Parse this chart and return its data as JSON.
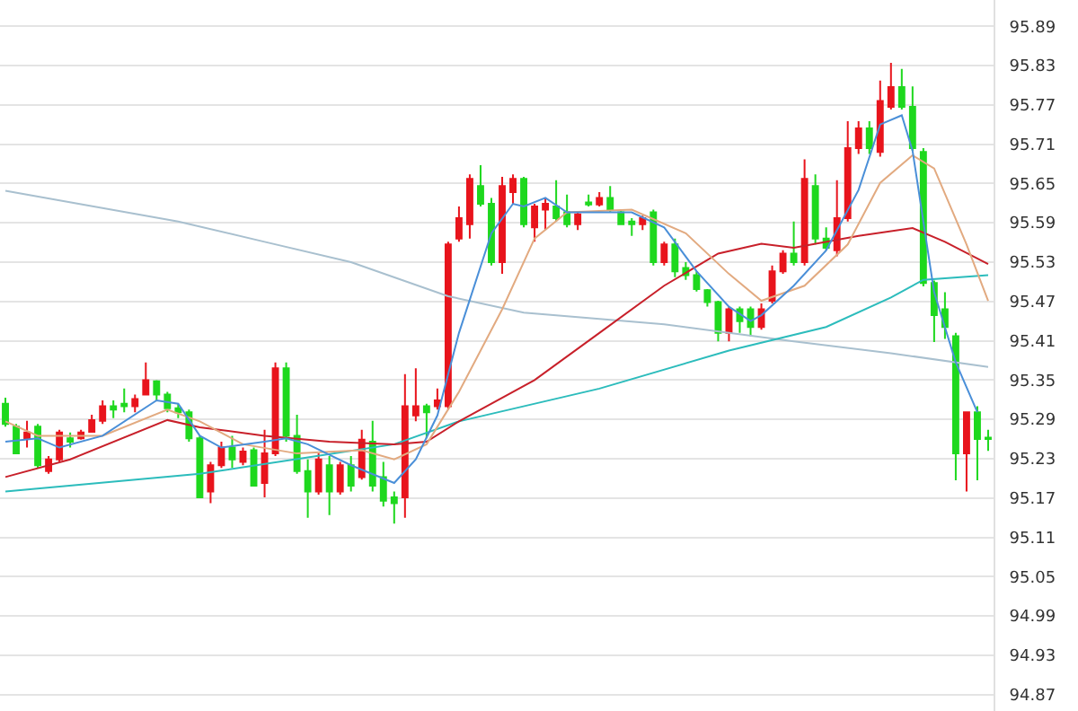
{
  "chart_data": {
    "type": "candlestick",
    "categories": [
      null,
      null,
      null,
      null,
      null,
      null,
      null,
      null,
      null,
      null,
      null,
      null,
      null,
      null,
      null,
      null,
      null,
      null,
      null,
      null,
      null,
      null,
      null,
      null,
      null,
      null,
      null,
      null,
      null,
      null,
      null,
      null,
      null,
      null,
      null,
      null,
      null,
      null,
      null,
      null,
      null,
      null,
      null,
      null,
      null,
      null,
      null,
      null,
      null,
      null,
      null,
      null,
      null,
      null,
      null,
      null,
      null,
      null,
      null,
      null,
      null,
      null,
      null,
      null,
      null,
      null,
      null,
      null,
      null,
      null,
      null,
      null,
      null,
      null,
      null,
      null,
      null,
      null,
      null,
      null,
      null,
      null,
      null,
      null,
      null,
      null,
      null,
      null,
      null,
      null,
      null,
      null
    ],
    "ohlc": [
      [
        95.314,
        95.323,
        95.279,
        95.283
      ],
      [
        95.279,
        95.283,
        95.238,
        95.238
      ],
      [
        95.261,
        95.288,
        95.247,
        95.27
      ],
      [
        95.279,
        95.283,
        95.216,
        95.22
      ],
      [
        95.211,
        95.234,
        95.207,
        95.229
      ],
      [
        95.229,
        95.274,
        95.225,
        95.27
      ],
      [
        95.261,
        95.27,
        95.247,
        95.256
      ],
      [
        95.261,
        95.274,
        95.259,
        95.27
      ],
      [
        95.271,
        95.297,
        95.27,
        95.289
      ],
      [
        95.288,
        95.319,
        95.283,
        95.31
      ],
      [
        95.31,
        95.319,
        95.292,
        95.305
      ],
      [
        95.314,
        95.337,
        95.301,
        95.31
      ],
      [
        95.31,
        95.328,
        95.301,
        95.321
      ],
      [
        95.328,
        95.377,
        95.328,
        95.35
      ],
      [
        95.348,
        95.35,
        95.319,
        95.328
      ],
      [
        95.328,
        95.332,
        95.301,
        95.307
      ],
      [
        95.307,
        95.314,
        95.292,
        95.301
      ],
      [
        95.301,
        95.305,
        95.256,
        95.261
      ],
      [
        95.261,
        95.265,
        95.171,
        95.171
      ],
      [
        95.18,
        95.225,
        95.162,
        95.22
      ],
      [
        95.22,
        95.256,
        95.216,
        95.247
      ],
      [
        95.247,
        95.265,
        95.216,
        95.229
      ],
      [
        95.225,
        95.247,
        95.22,
        95.241
      ],
      [
        95.243,
        95.247,
        95.189,
        95.189
      ],
      [
        95.193,
        95.274,
        95.171,
        95.238
      ],
      [
        95.238,
        95.377,
        95.234,
        95.368
      ],
      [
        95.368,
        95.377,
        95.256,
        95.265
      ],
      [
        95.265,
        95.297,
        95.207,
        95.211
      ],
      [
        95.211,
        95.229,
        95.14,
        95.18
      ],
      [
        95.18,
        95.238,
        95.175,
        95.229
      ],
      [
        95.22,
        95.234,
        95.144,
        95.18
      ],
      [
        95.18,
        95.225,
        95.175,
        95.22
      ],
      [
        95.22,
        95.234,
        95.18,
        95.189
      ],
      [
        95.202,
        95.274,
        95.198,
        95.259
      ],
      [
        95.256,
        95.288,
        95.18,
        95.189
      ],
      [
        95.202,
        95.225,
        95.157,
        95.166
      ],
      [
        95.171,
        95.18,
        95.131,
        95.162
      ],
      [
        95.171,
        95.359,
        95.14,
        95.31
      ],
      [
        95.296,
        95.368,
        95.287,
        95.31
      ],
      [
        95.31,
        95.314,
        95.261,
        95.301
      ],
      [
        95.31,
        95.337,
        95.305,
        95.319
      ],
      [
        95.31,
        95.561,
        95.305,
        95.557
      ],
      [
        95.566,
        95.615,
        95.561,
        95.597
      ],
      [
        95.588,
        95.664,
        95.566,
        95.657
      ],
      [
        95.646,
        95.678,
        95.615,
        95.619
      ],
      [
        95.619,
        95.628,
        95.525,
        95.53
      ],
      [
        95.53,
        95.66,
        95.512,
        95.646
      ],
      [
        95.637,
        95.664,
        95.619,
        95.657
      ],
      [
        95.657,
        95.66,
        95.583,
        95.588
      ],
      [
        95.583,
        95.619,
        95.561,
        95.615
      ],
      [
        95.61,
        95.628,
        95.579,
        95.619
      ],
      [
        95.615,
        95.655,
        95.592,
        95.597
      ],
      [
        95.606,
        95.633,
        95.583,
        95.588
      ],
      [
        95.588,
        95.606,
        95.579,
        95.603
      ],
      [
        95.621,
        95.633,
        95.615,
        95.618
      ],
      [
        95.618,
        95.637,
        95.615,
        95.628
      ],
      [
        95.628,
        95.646,
        95.606,
        95.61
      ],
      [
        95.606,
        95.61,
        95.588,
        95.588
      ],
      [
        95.592,
        95.597,
        95.57,
        95.588
      ],
      [
        95.588,
        95.601,
        95.579,
        95.597
      ],
      [
        95.606,
        95.61,
        95.525,
        95.53
      ],
      [
        95.53,
        95.561,
        95.525,
        95.557
      ],
      [
        95.557,
        95.566,
        95.507,
        95.516
      ],
      [
        95.521,
        95.53,
        95.503,
        95.51
      ],
      [
        95.51,
        95.516,
        95.485,
        95.489
      ],
      [
        95.487,
        95.489,
        95.462,
        95.469
      ],
      [
        95.469,
        95.471,
        95.409,
        95.422
      ],
      [
        95.422,
        95.462,
        95.409,
        95.458
      ],
      [
        95.458,
        95.462,
        95.422,
        95.44
      ],
      [
        95.458,
        95.462,
        95.417,
        95.431
      ],
      [
        95.431,
        95.467,
        95.427,
        95.458
      ],
      [
        95.471,
        95.525,
        95.467,
        95.516
      ],
      [
        95.516,
        95.548,
        95.512,
        95.543
      ],
      [
        95.543,
        95.592,
        95.525,
        95.53
      ],
      [
        95.53,
        95.687,
        95.525,
        95.657
      ],
      [
        95.646,
        95.664,
        95.557,
        95.566
      ],
      [
        95.566,
        95.583,
        95.548,
        95.552
      ],
      [
        95.548,
        95.655,
        95.539,
        95.597
      ],
      [
        95.597,
        95.745,
        95.592,
        95.704
      ],
      [
        95.704,
        95.745,
        95.695,
        95.734
      ],
      [
        95.734,
        95.745,
        95.695,
        95.704
      ],
      [
        95.698,
        95.807,
        95.691,
        95.776
      ],
      [
        95.767,
        95.834,
        95.763,
        95.797
      ],
      [
        95.797,
        95.825,
        95.763,
        95.767
      ],
      [
        95.767,
        95.798,
        95.7,
        95.704
      ],
      [
        95.698,
        95.704,
        95.493,
        95.498
      ],
      [
        95.498,
        95.502,
        95.408,
        95.449
      ],
      [
        95.458,
        95.484,
        95.413,
        95.431
      ],
      [
        95.417,
        95.422,
        95.197,
        95.238
      ],
      [
        95.238,
        95.301,
        95.18,
        95.301
      ],
      [
        95.301,
        95.31,
        95.197,
        95.26
      ],
      [
        95.262,
        95.274,
        95.242,
        95.26
      ]
    ],
    "colors": [
      "#1ed81e",
      "#1ed81e",
      "#e8141c",
      "#1ed81e",
      "#e8141c",
      "#e8141c",
      "#1ed81e",
      "#e8141c",
      "#e8141c",
      "#e8141c",
      "#1ed81e",
      "#1ed81e",
      "#e8141c",
      "#e8141c",
      "#1ed81e",
      "#1ed81e",
      "#1ed81e",
      "#1ed81e",
      "#1ed81e",
      "#e8141c",
      "#e8141c",
      "#1ed81e",
      "#e8141c",
      "#1ed81e",
      "#e8141c",
      "#e8141c",
      "#1ed81e",
      "#1ed81e",
      "#1ed81e",
      "#e8141c",
      "#1ed81e",
      "#e8141c",
      "#1ed81e",
      "#e8141c",
      "#1ed81e",
      "#1ed81e",
      "#1ed81e",
      "#e8141c",
      "#e8141c",
      "#1ed81e",
      "#e8141c",
      "#e8141c",
      "#e8141c",
      "#e8141c",
      "#1ed81e",
      "#1ed81e",
      "#e8141c",
      "#e8141c",
      "#1ed81e",
      "#e8141c",
      "#e8141c",
      "#1ed81e",
      "#1ed81e",
      "#e8141c",
      "#1ed81e",
      "#e8141c",
      "#1ed81e",
      "#1ed81e",
      "#1ed81e",
      "#e8141c",
      "#1ed81e",
      "#e8141c",
      "#1ed81e",
      "#1ed81e",
      "#1ed81e",
      "#1ed81e",
      "#1ed81e",
      "#e8141c",
      "#1ed81e",
      "#1ed81e",
      "#e8141c",
      "#e8141c",
      "#e8141c",
      "#1ed81e",
      "#e8141c",
      "#1ed81e",
      "#1ed81e",
      "#e8141c",
      "#e8141c",
      "#e8141c",
      "#1ed81e",
      "#e8141c",
      "#e8141c",
      "#1ed81e",
      "#1ed81e",
      "#1ed81e",
      "#1ed81e",
      "#1ed81e",
      "#1ed81e",
      "#e8141c",
      "#1ed81e",
      "#1ed81e"
    ],
    "series": [
      {
        "type": "line",
        "color": "#a9c0cf",
        "values": [
          95.639,
          null,
          null,
          null,
          null,
          null,
          null,
          null,
          null,
          null,
          null,
          null,
          null,
          null,
          null,
          null,
          95.592,
          null,
          null,
          null,
          null,
          null,
          null,
          null,
          95.561,
          null,
          null,
          null,
          null,
          null,
          null,
          null,
          95.53,
          null,
          null,
          null,
          null,
          null,
          null,
          null,
          null,
          95.478,
          null,
          null,
          null,
          null,
          null,
          null,
          95.453,
          null,
          null,
          null,
          null,
          null,
          null,
          null,
          null,
          null,
          null,
          null,
          null,
          95.435,
          null,
          null,
          null,
          null,
          null,
          null,
          null,
          null,
          null,
          null,
          null,
          95.409,
          null,
          null,
          null,
          null,
          null,
          null,
          null,
          null,
          95.391,
          null,
          null,
          null,
          null,
          null,
          null,
          null,
          null,
          95.37
        ]
      },
      {
        "type": "line",
        "color": "#2cbcbc",
        "values": [
          95.18,
          null,
          null,
          null,
          null,
          null,
          null,
          null,
          null,
          null,
          null,
          null,
          null,
          null,
          null,
          null,
          null,
          null,
          95.207,
          null,
          null,
          null,
          null,
          null,
          null,
          null,
          null,
          null,
          null,
          null,
          null,
          null,
          null,
          null,
          null,
          null,
          95.252,
          null,
          null,
          null,
          null,
          null,
          95.287,
          null,
          null,
          null,
          null,
          null,
          null,
          null,
          null,
          null,
          null,
          null,
          null,
          95.337,
          null,
          null,
          null,
          null,
          null,
          null,
          null,
          null,
          null,
          null,
          null,
          95.395,
          null,
          null,
          null,
          null,
          null,
          null,
          null,
          null,
          95.431,
          null,
          null,
          null,
          null,
          null,
          95.476,
          null,
          null,
          95.503,
          null,
          null,
          null,
          null,
          null,
          95.51
        ]
      },
      {
        "type": "line",
        "color": "#c8202a",
        "values": [
          95.202,
          null,
          null,
          null,
          null,
          null,
          95.229,
          null,
          null,
          null,
          null,
          null,
          null,
          null,
          null,
          95.289,
          null,
          null,
          95.278,
          null,
          null,
          null,
          null,
          null,
          95.265,
          null,
          null,
          null,
          null,
          null,
          95.256,
          null,
          null,
          null,
          null,
          null,
          95.252,
          null,
          null,
          95.256,
          null,
          null,
          95.287,
          null,
          null,
          null,
          null,
          null,
          null,
          95.35,
          null,
          null,
          null,
          null,
          null,
          95.422,
          null,
          null,
          null,
          null,
          null,
          95.494,
          null,
          null,
          null,
          null,
          95.543,
          null,
          null,
          null,
          95.558,
          null,
          null,
          95.552,
          null,
          null,
          null,
          null,
          null,
          95.57,
          null,
          null,
          null,
          null,
          95.582,
          null,
          null,
          95.561,
          null,
          null,
          null,
          95.527
        ]
      },
      {
        "type": "line",
        "color": "#e2aa80",
        "values": [
          95.287,
          null,
          null,
          95.265,
          null,
          null,
          null,
          null,
          null,
          95.265,
          null,
          null,
          null,
          null,
          null,
          95.305,
          null,
          null,
          95.287,
          null,
          null,
          null,
          95.252,
          null,
          null,
          null,
          null,
          95.238,
          null,
          null,
          null,
          null,
          null,
          95.243,
          null,
          null,
          95.229,
          null,
          null,
          95.252,
          null,
          null,
          95.332,
          null,
          null,
          null,
          95.458,
          null,
          null,
          95.566,
          null,
          null,
          95.606,
          null,
          null,
          null,
          null,
          null,
          95.61,
          null,
          null,
          null,
          null,
          95.574,
          null,
          null,
          null,
          95.512,
          null,
          null,
          95.471,
          null,
          null,
          null,
          95.494,
          null,
          null,
          null,
          95.557,
          null,
          null,
          95.651,
          null,
          null,
          95.693,
          null,
          95.673,
          null,
          null,
          95.557,
          null,
          95.471
        ]
      },
      {
        "type": "line",
        "color": "#4a8fd8",
        "values": [
          95.256,
          null,
          null,
          95.261,
          null,
          95.247,
          null,
          null,
          null,
          95.265,
          null,
          null,
          null,
          null,
          95.319,
          null,
          95.314,
          null,
          95.265,
          null,
          95.247,
          null,
          null,
          null,
          95.256,
          null,
          95.261,
          null,
          95.252,
          null,
          null,
          null,
          95.22,
          null,
          null,
          null,
          95.193,
          null,
          95.229,
          null,
          95.296,
          null,
          95.422,
          null,
          null,
          95.574,
          null,
          95.619,
          95.615,
          null,
          95.628,
          null,
          95.606,
          null,
          null,
          95.606,
          null,
          null,
          95.606,
          null,
          null,
          95.583,
          null,
          null,
          95.516,
          null,
          null,
          95.462,
          null,
          95.44,
          95.449,
          null,
          null,
          95.494,
          null,
          null,
          95.548,
          null,
          null,
          95.64,
          null,
          95.74,
          null,
          95.754,
          95.7,
          null,
          95.484,
          null,
          95.377,
          null,
          95.301,
          null
        ]
      }
    ],
    "ylim": [
      94.845,
      95.93
    ],
    "yticks": [
      94.87,
      94.93,
      94.99,
      95.05,
      95.11,
      95.17,
      95.23,
      95.29,
      95.35,
      95.41,
      95.47,
      95.53,
      95.59,
      95.65,
      95.71,
      95.77,
      95.83,
      95.89
    ],
    "grid": "y",
    "tick_labels": "y"
  }
}
